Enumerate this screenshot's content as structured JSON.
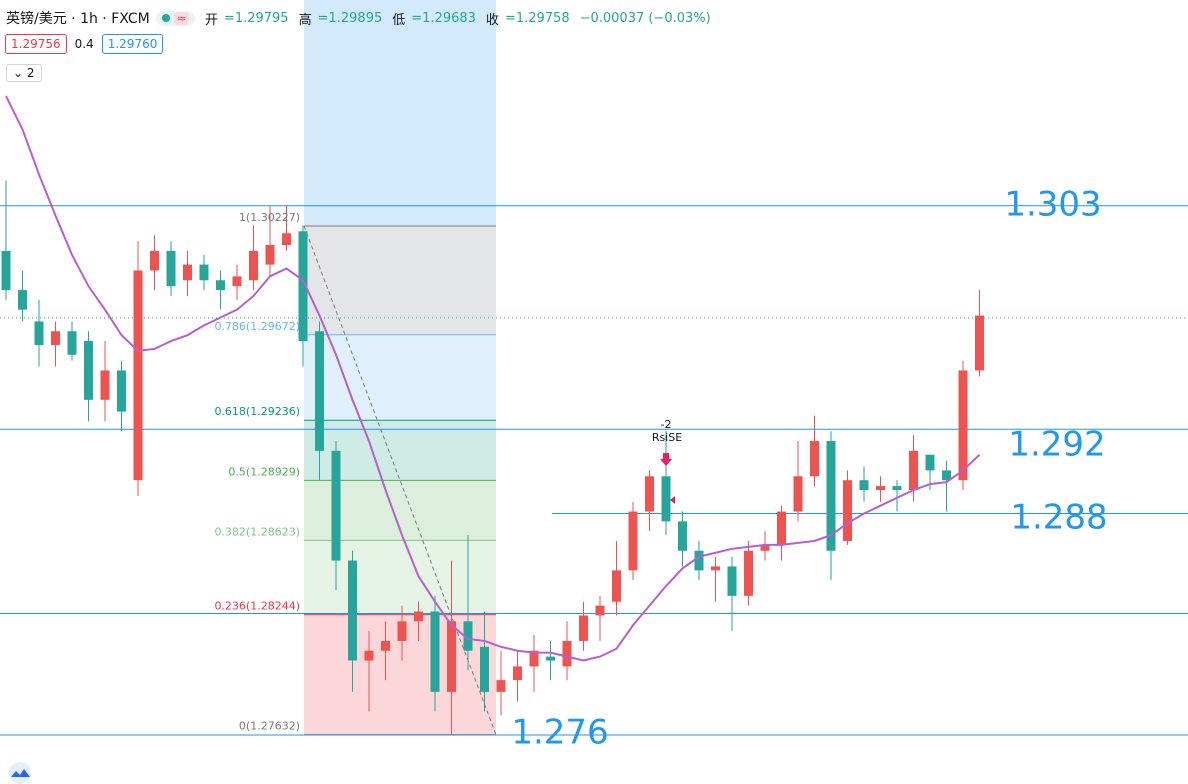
{
  "header": {
    "symbol": "英镑/美元 · 1h · FXCM",
    "quote": [
      {
        "label": "开",
        "value": "=1.29795"
      },
      {
        "label": "高",
        "value": "=1.29895"
      },
      {
        "label": "低",
        "value": "=1.29683"
      },
      {
        "label": "收",
        "value": "=1.29758"
      }
    ],
    "change": "−0.00037 (−0.03%)",
    "sell": "1.29756",
    "spread": "0.4",
    "buy": "1.29760",
    "indicators": "2"
  },
  "annotation": {
    "count": "-2",
    "signal": "RsiSE"
  },
  "chart_data": {
    "type": "candlestick",
    "up_color": "#ef5350",
    "down_color": "#26a69a",
    "ylim": [
      1.2738,
      1.3138
    ],
    "open": [
      1.301,
      1.299,
      1.2974,
      1.2962,
      1.2969,
      1.2964,
      1.2934,
      1.2949,
      1.2893,
      1.3,
      1.301,
      1.2995,
      1.3003,
      1.2995,
      1.2992,
      1.2995,
      1.3003,
      1.3013,
      1.302,
      1.2969,
      1.2908,
      1.2852,
      1.2801,
      1.2806,
      1.2811,
      1.2821,
      1.2826,
      1.2785,
      1.2821,
      1.2808,
      1.2785,
      1.2791,
      1.2798,
      1.2803,
      1.2798,
      1.2811,
      1.2824,
      1.2831,
      1.2847,
      1.2877,
      1.2895,
      1.2872,
      1.2857,
      1.2847,
      1.2849,
      1.2834,
      1.2857,
      1.286,
      1.2877,
      1.2895,
      1.2913,
      1.2862,
      1.2893,
      1.2888,
      1.289,
      1.2888,
      1.2906,
      1.2898,
      1.2893,
      1.2949
    ],
    "high": [
      1.3046,
      1.3,
      1.2985,
      1.2974,
      1.2974,
      1.2969,
      1.2964,
      1.2954,
      1.3015,
      1.3018,
      1.3015,
      1.301,
      1.3008,
      1.3,
      1.3003,
      1.3023,
      1.3033,
      1.3033,
      1.3023,
      1.2974,
      1.2913,
      1.2857,
      1.2816,
      1.2821,
      1.2829,
      1.2831,
      1.2834,
      1.2852,
      1.2865,
      1.2826,
      1.2806,
      1.2806,
      1.2814,
      1.2811,
      1.2821,
      1.2831,
      1.2834,
      1.2862,
      1.2882,
      1.2898,
      1.2918,
      1.2877,
      1.2862,
      1.2854,
      1.2854,
      1.2862,
      1.2867,
      1.288,
      1.2913,
      1.2926,
      1.2918,
      1.2898,
      1.29,
      1.2895,
      1.2893,
      1.2916,
      1.2906,
      1.2903,
      1.2954,
      1.299
    ],
    "low": [
      1.2985,
      1.2974,
      1.2951,
      1.2951,
      1.2954,
      1.2923,
      1.2923,
      1.2918,
      1.2885,
      1.299,
      1.2987,
      1.2987,
      1.299,
      1.298,
      1.2985,
      1.299,
      1.2997,
      1.301,
      1.2951,
      1.2893,
      1.2837,
      1.2785,
      1.2775,
      1.2791,
      1.2801,
      1.2811,
      1.2775,
      1.2763,
      1.2796,
      1.2775,
      1.2773,
      1.278,
      1.2785,
      1.2791,
      1.2791,
      1.2806,
      1.2811,
      1.2824,
      1.2842,
      1.2867,
      1.2865,
      1.2849,
      1.2842,
      1.2831,
      1.2816,
      1.2829,
      1.2852,
      1.2852,
      1.2872,
      1.289,
      1.2842,
      1.286,
      1.2882,
      1.2882,
      1.2877,
      1.2882,
      1.2888,
      1.2877,
      1.2888,
      1.2946
    ],
    "close": [
      1.299,
      1.298,
      1.2962,
      1.2969,
      1.2957,
      1.2934,
      1.2949,
      1.2928,
      1.3,
      1.301,
      1.2992,
      1.3003,
      1.2995,
      1.299,
      1.2997,
      1.301,
      1.3013,
      1.3019,
      1.2964,
      1.2908,
      1.2852,
      1.2801,
      1.2806,
      1.2811,
      1.2821,
      1.2826,
      1.2785,
      1.2821,
      1.2806,
      1.2785,
      1.2791,
      1.2798,
      1.2806,
      1.2801,
      1.2811,
      1.2824,
      1.2829,
      1.2847,
      1.2877,
      1.2895,
      1.2872,
      1.2857,
      1.2847,
      1.2849,
      1.2834,
      1.2857,
      1.286,
      1.2877,
      1.2895,
      1.2913,
      1.2857,
      1.2893,
      1.2888,
      1.289,
      1.2888,
      1.2908,
      1.2898,
      1.2893,
      1.2949,
      1.2977
    ],
    "ma": {
      "color": "#b660cd",
      "values": [
        1.3089,
        1.3072,
        1.3049,
        1.3028,
        1.3008,
        1.2992,
        1.298,
        1.2967,
        1.2959,
        1.296,
        1.2964,
        1.2967,
        1.2972,
        1.2976,
        1.298,
        1.2987,
        1.2997,
        1.3001,
        1.2995,
        1.2977,
        1.2957,
        1.2934,
        1.2913,
        1.2888,
        1.2865,
        1.2844,
        1.2831,
        1.2819,
        1.2812,
        1.2811,
        1.2808,
        1.2806,
        1.2805,
        1.2805,
        1.2803,
        1.2801,
        1.2803,
        1.2807,
        1.2819,
        1.2829,
        1.2839,
        1.2848,
        1.2854,
        1.2856,
        1.2858,
        1.2859,
        1.286,
        1.286,
        1.2861,
        1.2862,
        1.2865,
        1.2871,
        1.2876,
        1.288,
        1.2884,
        1.2888,
        1.2891,
        1.2892,
        1.2898,
        1.2906
      ]
    },
    "fib_levels": [
      {
        "label": "1(1.30227)",
        "value": 1.30227,
        "color": "#787b86"
      },
      {
        "label": "0.786(1.29672)",
        "value": 1.29672,
        "color": "#64b5f6"
      },
      {
        "label": "0.618(1.29236)",
        "value": 1.29236,
        "color": "#089981"
      },
      {
        "label": "0.5(1.28929)",
        "value": 1.28929,
        "color": "#4caf50"
      },
      {
        "label": "0.382(1.28623)",
        "value": 1.28623,
        "color": "#81c784"
      },
      {
        "label": "0.236(1.28244)",
        "value": 1.28244,
        "color": "#f23645"
      },
      {
        "label": "0(1.27632)",
        "value": 1.27632,
        "color": "#787b86"
      }
    ],
    "hlines": [
      {
        "value": 1.3033,
        "label": "1.303"
      },
      {
        "value": 1.29758,
        "style": "dotted"
      },
      {
        "value": 1.2919,
        "label": "1.292"
      },
      {
        "value": 1.2876,
        "label": "1.288"
      },
      {
        "value": 1.2763,
        "label": "1.276"
      },
      {
        "value": 1.2825
      }
    ],
    "line_color": "#2196f3"
  }
}
